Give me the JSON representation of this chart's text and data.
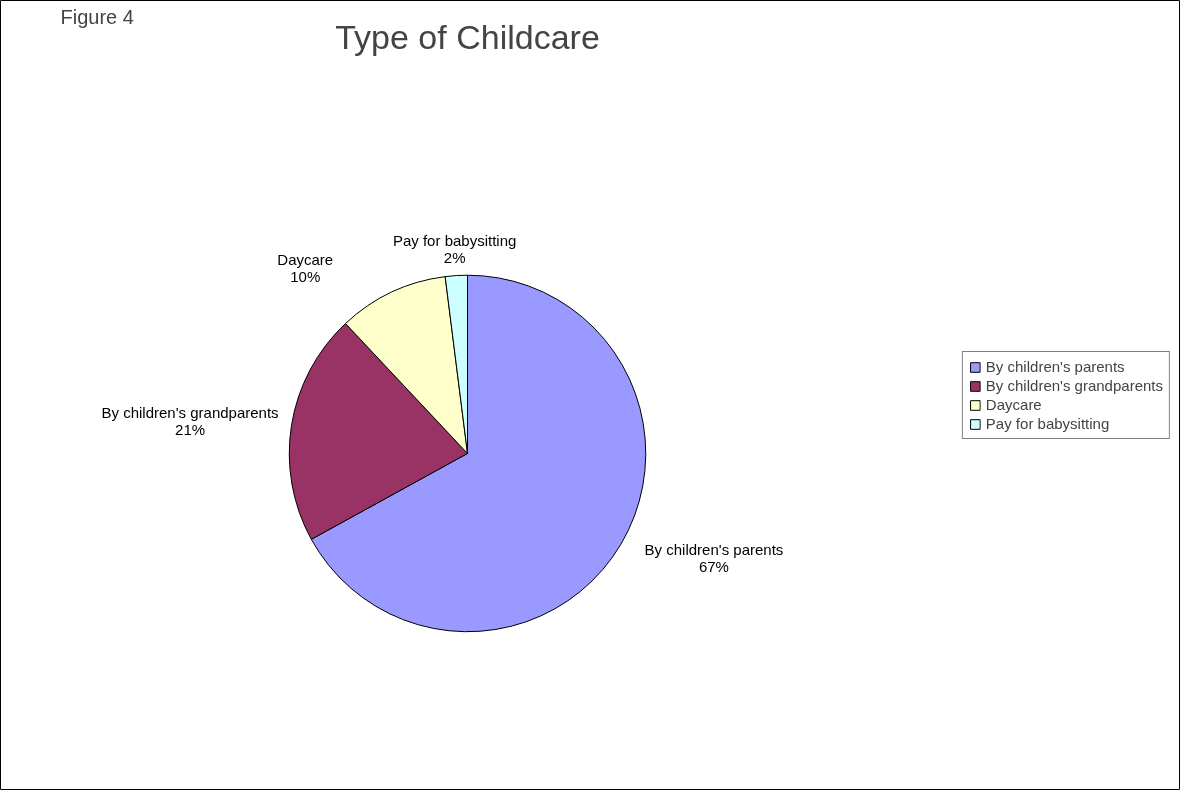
{
  "chart_data": {
    "type": "pie",
    "title": "Type of Childcare",
    "annotations": [
      "Figure 4"
    ],
    "categories": [
      "By children's parents",
      "By children's grandparents",
      "Daycare",
      "Pay for babysitting"
    ],
    "values": [
      67,
      21,
      10,
      2
    ],
    "colors": [
      "#9999ff",
      "#993366",
      "#ffffcc",
      "#ccffff"
    ],
    "value_labels": [
      "67%",
      "21%",
      "10%",
      "2%"
    ],
    "legend": "right"
  }
}
